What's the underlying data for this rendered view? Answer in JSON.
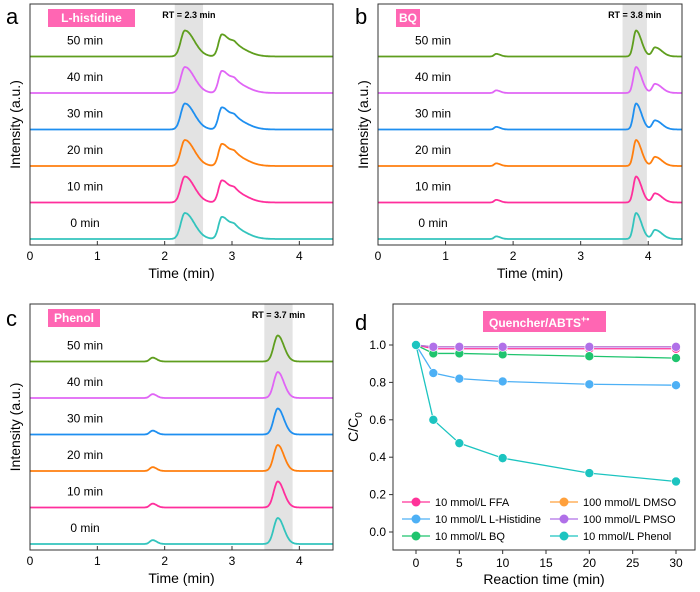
{
  "chart_data": [
    {
      "type": "line",
      "panel_letter": "a",
      "badge": "L-histidine",
      "badge_color": "#ff66b3",
      "rt_label": "RT = 2.3 min",
      "shade_range": [
        2.15,
        2.57
      ],
      "xlabel": "Time (min)",
      "ylabel": "Intensity (a.u.)",
      "xlim": [
        0,
        4.5
      ],
      "xticks": [
        0,
        1,
        2,
        3,
        4
      ],
      "peaks": [
        [
          2.3,
          1.0,
          0.06,
          0.14
        ],
        [
          2.85,
          0.85,
          0.05,
          0.12
        ],
        [
          3.05,
          0.35,
          0.06,
          0.18
        ]
      ],
      "series": [
        {
          "name": "0 min",
          "color": "#33c4bd"
        },
        {
          "name": "10 min",
          "color": "#ff2f9c"
        },
        {
          "name": "20 min",
          "color": "#ff7f0e"
        },
        {
          "name": "30 min",
          "color": "#1e8ff0"
        },
        {
          "name": "40 min",
          "color": "#e065f5"
        },
        {
          "name": "50 min",
          "color": "#5f9e1e"
        }
      ]
    },
    {
      "type": "line",
      "panel_letter": "b",
      "badge": "BQ",
      "badge_color": "#ff66b3",
      "rt_label": "RT = 3.8 min",
      "shade_range": [
        3.62,
        3.98
      ],
      "xlabel": "Time (min)",
      "ylabel": "Intensity (a.u.)",
      "xlim": [
        0,
        4.5
      ],
      "xticks": [
        0,
        1,
        2,
        3,
        4
      ],
      "peaks": [
        [
          1.75,
          0.1,
          0.03,
          0.06
        ],
        [
          3.82,
          1.0,
          0.04,
          0.08
        ],
        [
          4.1,
          0.35,
          0.04,
          0.1
        ]
      ],
      "series": [
        {
          "name": "0 min",
          "color": "#33c4bd"
        },
        {
          "name": "10 min",
          "color": "#ff2f9c"
        },
        {
          "name": "20 min",
          "color": "#ff7f0e"
        },
        {
          "name": "30 min",
          "color": "#1e8ff0"
        },
        {
          "name": "40 min",
          "color": "#e065f5"
        },
        {
          "name": "50 min",
          "color": "#5f9e1e"
        }
      ]
    },
    {
      "type": "line",
      "panel_letter": "c",
      "badge": "Phenol",
      "badge_color": "#ff66b3",
      "rt_label": "RT = 3.7 min",
      "shade_range": [
        3.48,
        3.9
      ],
      "xlabel": "Time (min)",
      "ylabel": "Intensity (a.u.)",
      "xlim": [
        0,
        4.5
      ],
      "xticks": [
        0,
        1,
        2,
        3,
        4
      ],
      "peaks": [
        [
          1.82,
          0.15,
          0.04,
          0.06
        ],
        [
          3.68,
          1.0,
          0.06,
          0.09
        ]
      ],
      "series": [
        {
          "name": "0 min",
          "color": "#33c4bd"
        },
        {
          "name": "10 min",
          "color": "#ff2f9c"
        },
        {
          "name": "20 min",
          "color": "#ff7f0e"
        },
        {
          "name": "30 min",
          "color": "#1e8ff0"
        },
        {
          "name": "40 min",
          "color": "#e065f5"
        },
        {
          "name": "50 min",
          "color": "#5f9e1e"
        }
      ]
    },
    {
      "type": "line",
      "panel_letter": "d",
      "badge": "Quencher/ABTS",
      "badge_sup": "+•",
      "badge_color": "#ff66b3",
      "xlabel": "Reaction time (min)",
      "ylabel": "C/C",
      "ylabel_sub": "0",
      "xlim": [
        -3,
        32
      ],
      "ylim": [
        -0.1,
        1.1
      ],
      "xticks": [
        0,
        5,
        10,
        15,
        20,
        25,
        30
      ],
      "yticks": [
        "0.0",
        "0.2",
        "0.4",
        "0.6",
        "0.8",
        "1.0"
      ],
      "legend_position": "bottom",
      "x": [
        0,
        2,
        5,
        10,
        20,
        30
      ],
      "series": [
        {
          "name": "10 mmol/L FFA",
          "color": "#ff3399",
          "values": [
            1.0,
            0.98,
            0.98,
            0.98,
            0.98,
            0.98
          ]
        },
        {
          "name": "10 mmol/L L-Histidine",
          "color": "#4db0f5",
          "values": [
            1.0,
            0.85,
            0.82,
            0.805,
            0.79,
            0.785
          ]
        },
        {
          "name": "10 mmol/L BQ",
          "color": "#1fc46e",
          "values": [
            1.0,
            0.955,
            0.955,
            0.95,
            0.94,
            0.93
          ]
        },
        {
          "name": "100 mmol/L DMSO",
          "color": "#ffa03c",
          "values": [
            1.0,
            0.99,
            0.99,
            0.99,
            0.99,
            0.99
          ]
        },
        {
          "name": "100 mmol/L PMSO",
          "color": "#b070e8",
          "values": [
            1.0,
            0.99,
            0.99,
            0.99,
            0.99,
            0.99
          ]
        },
        {
          "name": "10 mmol/L Phenol",
          "color": "#1cc4c0",
          "values": [
            1.0,
            0.6,
            0.475,
            0.395,
            0.315,
            0.27
          ]
        }
      ]
    }
  ]
}
